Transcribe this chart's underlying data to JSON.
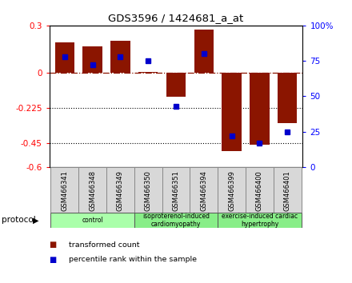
{
  "title": "GDS3596 / 1424681_a_at",
  "samples": [
    "GSM466341",
    "GSM466348",
    "GSM466349",
    "GSM466350",
    "GSM466351",
    "GSM466394",
    "GSM466399",
    "GSM466400",
    "GSM466401"
  ],
  "transformed_count": [
    0.195,
    0.165,
    0.205,
    0.002,
    -0.155,
    0.275,
    -0.5,
    -0.46,
    -0.32
  ],
  "percentile_rank_pct": [
    78,
    72,
    78,
    75,
    43,
    80,
    22,
    17,
    25
  ],
  "ylim_left": [
    -0.6,
    0.3
  ],
  "ylim_right": [
    0,
    100
  ],
  "yticks_left": [
    0.3,
    0.0,
    -0.225,
    -0.45,
    -0.6
  ],
  "ytick_labels_left": [
    "0.3",
    "0",
    "-0.225",
    "-0.45",
    "-0.6"
  ],
  "yticks_right": [
    100,
    75,
    50,
    25,
    0
  ],
  "ytick_labels_right": [
    "100%",
    "75",
    "50",
    "25",
    "0"
  ],
  "dotted_lines": [
    -0.225,
    -0.45
  ],
  "bar_color": "#8B1500",
  "dot_color": "#0000CC",
  "hline_color": "#8B1500",
  "groups": [
    {
      "label": "control",
      "start": 0,
      "end": 3
    },
    {
      "label": "isoproterenol-induced\ncardiomyopathy",
      "start": 3,
      "end": 6
    },
    {
      "label": "exercise-induced cardiac\nhypertrophy",
      "start": 6,
      "end": 9
    }
  ],
  "group_color_light": "#aaffaa",
  "group_color_dark": "#88ee88",
  "label_bg_color": "#d8d8d8",
  "protocol_label": "protocol",
  "legend_items": [
    {
      "label": "transformed count",
      "color": "#8B1500"
    },
    {
      "label": "percentile rank within the sample",
      "color": "#0000CC"
    }
  ]
}
